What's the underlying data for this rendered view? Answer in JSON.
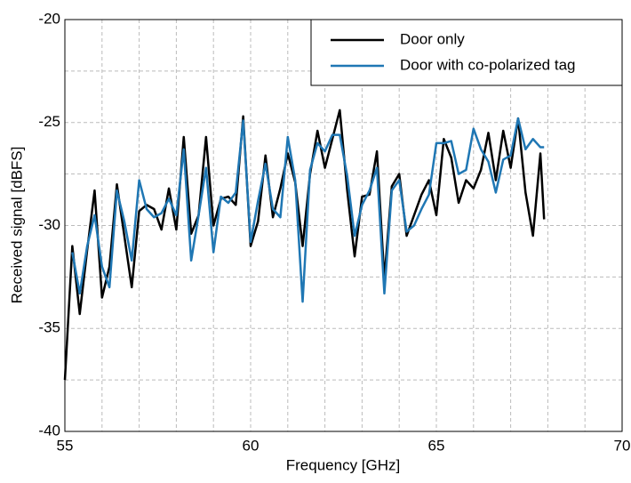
{
  "chart_data": {
    "type": "line",
    "xlabel": "Frequency [GHz]",
    "ylabel": "Received signal [dBFS]",
    "x": [
      55.0,
      55.2,
      55.4,
      55.6,
      55.8,
      56.0,
      56.2,
      56.4,
      56.6,
      56.8,
      57.0,
      57.2,
      57.4,
      57.6,
      57.8,
      58.0,
      58.2,
      58.4,
      58.6,
      58.8,
      59.0,
      59.2,
      59.4,
      59.6,
      59.8,
      60.0,
      60.2,
      60.4,
      60.6,
      60.8,
      61.0,
      61.2,
      61.4,
      61.6,
      61.8,
      62.0,
      62.2,
      62.4,
      62.6,
      62.8,
      63.0,
      63.2,
      63.4,
      63.6,
      63.8,
      64.0,
      64.2,
      64.4,
      64.6,
      64.8,
      65.0,
      65.2,
      65.4,
      65.6,
      65.8,
      66.0,
      66.2,
      66.4,
      66.6,
      66.8,
      67.0,
      67.2,
      67.4,
      67.6,
      67.8,
      67.9
    ],
    "series": [
      {
        "name": "Door only",
        "color": "#000000",
        "values": [
          -37.5,
          -31,
          -34.3,
          -31.2,
          -28.3,
          -33.5,
          -32,
          -28,
          -30.5,
          -33,
          -29.3,
          -29,
          -29.2,
          -30.2,
          -28.2,
          -30.2,
          -25.7,
          -30.4,
          -29.5,
          -25.7,
          -30,
          -28.7,
          -28.6,
          -29,
          -24.7,
          -31,
          -29.8,
          -26.6,
          -29.6,
          -28.2,
          -26.5,
          -27.9,
          -31,
          -27.5,
          -25.4,
          -27.2,
          -25.8,
          -24.4,
          -28.3,
          -31.5,
          -28.6,
          -28.5,
          -26.4,
          -32.6,
          -28.1,
          -27.5,
          -30.5,
          -29.5,
          -28.5,
          -27.8,
          -29.5,
          -25.8,
          -26.7,
          -28.9,
          -27.8,
          -28.2,
          -27.3,
          -25.5,
          -27.8,
          -25.4,
          -27.2,
          -24.8,
          -28.4,
          -30.5,
          -26.5,
          -29.7
        ]
      },
      {
        "name": "Door with co-polarized tag",
        "color": "#1f77b4",
        "values": [
          null,
          -31.3,
          -33.3,
          -31.0,
          -29.5,
          -32.0,
          -33.0,
          -28.3,
          -29.8,
          -31.7,
          -27.8,
          -29.2,
          -29.6,
          -29.4,
          -28.7,
          -29.5,
          -26.3,
          -31.7,
          -29.5,
          -27.2,
          -31.3,
          -28.6,
          -28.9,
          -28.4,
          -24.9,
          -30.8,
          -28.8,
          -27,
          -29.2,
          -29.6,
          -25.7,
          -27.8,
          -33.7,
          -27.3,
          -26,
          -26.4,
          -25.6,
          -25.6,
          -27.6,
          -30.5,
          -29,
          -28.3,
          -27.2,
          -33.3,
          -28.3,
          -27.8,
          -30.3,
          -30,
          -29.2,
          -28.5,
          -26,
          -26,
          -25.9,
          -27.5,
          -27.3,
          -25.3,
          -26.3,
          -26.9,
          -28.4,
          -26.8,
          -26.6,
          -24.8,
          -26.3,
          -25.8,
          -26.2,
          -26.2
        ]
      }
    ],
    "xlim": [
      55,
      70
    ],
    "xticks": [
      55,
      60,
      65,
      70
    ],
    "ylim": [
      -40,
      -20
    ],
    "yticks": [
      -40,
      -35,
      -30,
      -25,
      -20
    ],
    "minor_xticks": [
      56,
      57,
      58,
      59,
      61,
      62,
      63,
      64,
      66,
      67,
      68,
      69
    ],
    "minor_yticks": [
      -37.5,
      -32.5,
      -27.5,
      -22.5
    ],
    "grid": true,
    "legend": "upper right"
  }
}
